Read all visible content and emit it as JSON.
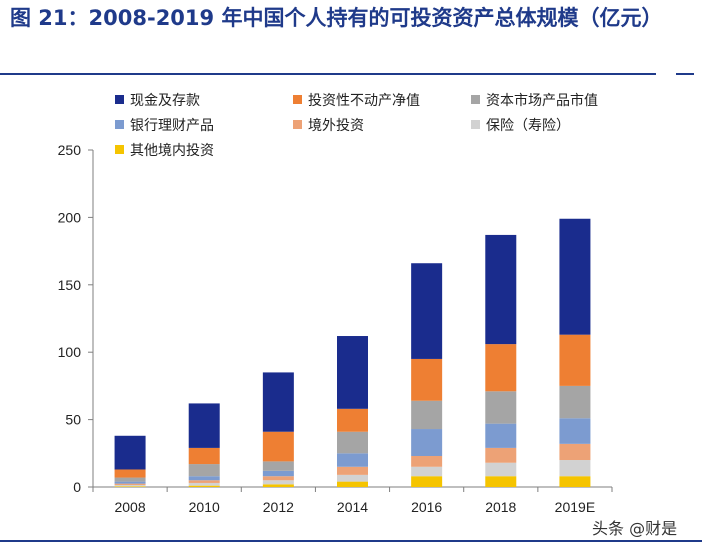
{
  "chart_data": {
    "type": "bar",
    "stacked": true,
    "title": "图 21：2008-2019 年中国个人持有的可投资资产总体规模（亿元）",
    "categories": [
      "2008",
      "2010",
      "2012",
      "2014",
      "2016",
      "2018",
      "2019E"
    ],
    "ylim": [
      0,
      250
    ],
    "yticks": [
      0,
      50,
      100,
      150,
      200,
      250
    ],
    "xlabel": "",
    "ylabel": "",
    "legend_position": "top",
    "series": [
      {
        "name": "其他境内投资",
        "color": "#f5c400",
        "values": [
          0.5,
          1,
          2,
          4,
          8,
          8,
          8
        ]
      },
      {
        "name": "保险（寿险）",
        "color": "#d2d2d2",
        "values": [
          1,
          2,
          3,
          5,
          7,
          10,
          12
        ]
      },
      {
        "name": "境外投资",
        "color": "#eda276",
        "values": [
          1,
          2,
          3,
          6,
          8,
          11,
          12
        ]
      },
      {
        "name": "银行理财产品",
        "color": "#7c9bd0",
        "values": [
          1.5,
          3,
          4,
          10,
          20,
          18,
          19
        ]
      },
      {
        "name": "资本市场产品市值",
        "color": "#a5a5a5",
        "values": [
          3,
          9,
          7,
          16,
          21,
          24,
          24
        ]
      },
      {
        "name": "投资性不动产净值",
        "color": "#ee7f33",
        "values": [
          6,
          12,
          22,
          17,
          31,
          35,
          38
        ]
      },
      {
        "name": "现金及存款",
        "color": "#1a2c8d",
        "values": [
          25,
          33,
          44,
          54,
          71,
          81,
          86
        ]
      }
    ],
    "legend_order": [
      "现金及存款",
      "投资性不动产净值",
      "资本市场产品市值",
      "银行理财产品",
      "境外投资",
      "保险（寿险）",
      "其他境内投资"
    ]
  },
  "watermark": "头条 @财是"
}
